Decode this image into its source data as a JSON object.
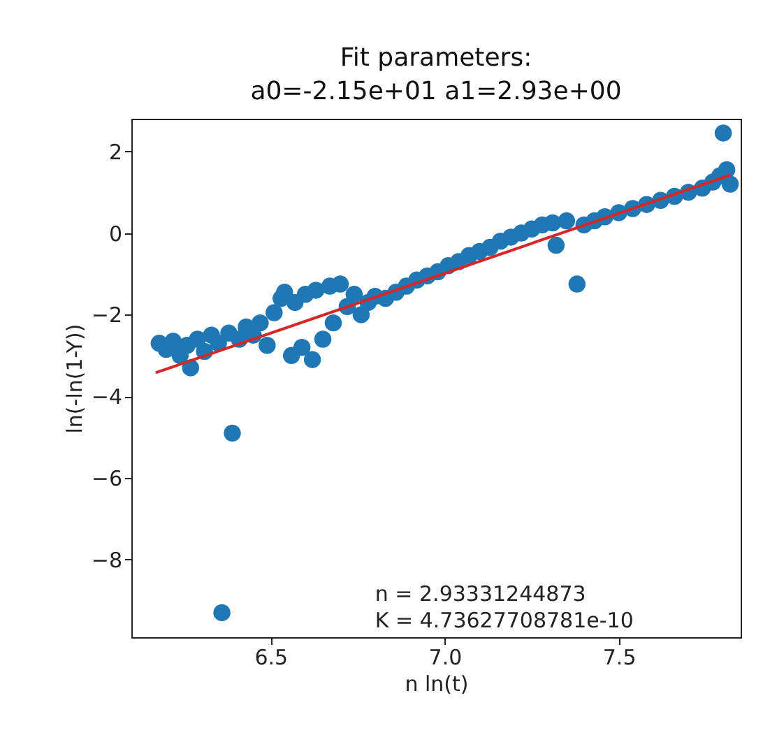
{
  "chart_data": {
    "type": "scatter",
    "title": "Fit parameters:\na0=-2.15e+01 a1=2.93e+00",
    "xlabel": "n ln(t)",
    "ylabel": "ln(-ln(1-Y))",
    "xlim": [
      6.1,
      7.85
    ],
    "ylim": [
      -9.9,
      2.8
    ],
    "xticks": [
      6.5,
      {
        "value": 7,
        "label": "7.0"
      },
      7.5
    ],
    "yticks": [
      {
        "value": -8,
        "label": "−8"
      },
      {
        "value": -6,
        "label": "−6"
      },
      {
        "value": -4,
        "label": "−4"
      },
      {
        "value": -2,
        "label": "−2"
      },
      0,
      2
    ],
    "grid": false,
    "annotations": [
      "n = 2.93331244873",
      "K = 4.73627708781e-10"
    ],
    "series": [
      {
        "marker": "circle",
        "color": "#1f77b4",
        "x": [
          6.18,
          6.2,
          6.22,
          6.24,
          6.26,
          6.27,
          6.29,
          6.31,
          6.33,
          6.35,
          6.36,
          6.39,
          6.38,
          6.41,
          6.43,
          6.45,
          6.47,
          6.49,
          6.51,
          6.53,
          6.54,
          6.56,
          6.57,
          6.59,
          6.6,
          6.62,
          6.63,
          6.65,
          6.67,
          6.68,
          6.7,
          6.72,
          6.74,
          6.76,
          6.78,
          6.8,
          6.83,
          6.86,
          6.89,
          6.92,
          6.95,
          6.98,
          7.01,
          7.04,
          7.07,
          7.1,
          7.13,
          7.16,
          7.19,
          7.22,
          7.25,
          7.28,
          7.32,
          7.31,
          7.35,
          7.38,
          7.4,
          7.43,
          7.46,
          7.5,
          7.54,
          7.58,
          7.62,
          7.66,
          7.7,
          7.74,
          7.77,
          7.79,
          7.8,
          7.81,
          7.82
        ],
        "values": [
          -2.7,
          -2.85,
          -2.65,
          -3.0,
          -2.75,
          -3.3,
          -2.6,
          -2.9,
          -2.5,
          -2.7,
          -9.3,
          -4.9,
          -2.45,
          -2.6,
          -2.3,
          -2.5,
          -2.2,
          -2.75,
          -1.95,
          -1.6,
          -1.45,
          -3.0,
          -1.7,
          -2.8,
          -1.5,
          -3.1,
          -1.4,
          -2.6,
          -1.3,
          -2.2,
          -1.25,
          -1.8,
          -1.5,
          -2.0,
          -1.7,
          -1.55,
          -1.6,
          -1.45,
          -1.3,
          -1.15,
          -1.05,
          -0.95,
          -0.8,
          -0.7,
          -0.55,
          -0.45,
          -0.35,
          -0.2,
          -0.1,
          0.0,
          0.1,
          0.2,
          -0.3,
          0.25,
          0.3,
          -1.25,
          0.2,
          0.3,
          0.4,
          0.5,
          0.6,
          0.7,
          0.8,
          0.9,
          1.0,
          1.1,
          1.25,
          1.4,
          2.45,
          1.55,
          1.2
        ]
      },
      {
        "type": "line",
        "color": "#d62728",
        "x": [
          6.17,
          7.82
        ],
        "values": [
          -3.42,
          1.42
        ]
      }
    ]
  }
}
